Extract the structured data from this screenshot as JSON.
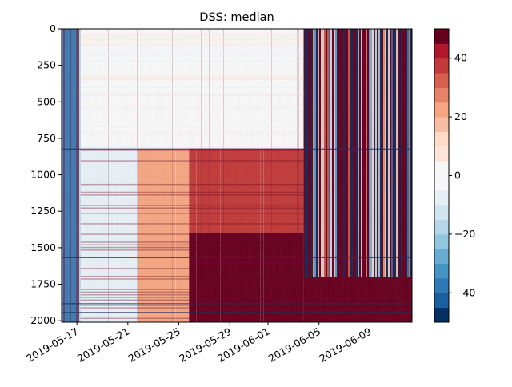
{
  "chart_data": {
    "type": "heatmap",
    "title": "DSS: median",
    "xlabel": "",
    "ylabel": "",
    "x_ticks": [
      "2019-05-17",
      "2019-05-21",
      "2019-05-25",
      "2019-05-29",
      "2019-06-01",
      "2019-06-05",
      "2019-06-09"
    ],
    "x_tick_offsets_days": [
      0.2,
      4.2,
      8.2,
      12.2,
      15.2,
      19.2,
      23.2
    ],
    "xlim_days": [
      -1.0,
      26.5
    ],
    "xlim": [
      "2019-05-15",
      "2019-06-12"
    ],
    "y_ticks": [
      "0",
      "250",
      "500",
      "750",
      "1000",
      "1250",
      "1500",
      "1750",
      "2000"
    ],
    "y_tick_values": [
      0,
      250,
      500,
      750,
      1000,
      1250,
      1500,
      1750,
      2000
    ],
    "ylim": [
      2010,
      0
    ],
    "y_inverted": true,
    "colorbar": {
      "ticks": [
        "40",
        "20",
        "0",
        "−20",
        "−40"
      ],
      "tick_values": [
        40,
        20,
        0,
        -20,
        -40
      ],
      "vmin": -50,
      "vmax": 50,
      "levels": 20,
      "colormap": "RdBu_r",
      "colors": [
        "#053061",
        "#1d5ea0",
        "#2f79b5",
        "#4393c3",
        "#6aabd2",
        "#92c5de",
        "#b5d6e8",
        "#d1e5f0",
        "#e6eff5",
        "#f7f7f7",
        "#f7f7f7",
        "#fbe5d8",
        "#fddbc7",
        "#f7bea3",
        "#f4a582",
        "#e58267",
        "#d6604d",
        "#c03b3a",
        "#b2182b",
        "#67001f"
      ]
    },
    "regions": [
      {
        "days": [
          -1.0,
          0.5
        ],
        "depth": [
          0,
          2010
        ],
        "value": -30,
        "label": "early-columns"
      },
      {
        "days": [
          0.5,
          18.0
        ],
        "depth": [
          0,
          820
        ],
        "value": 3,
        "label": "upper-mixed"
      },
      {
        "days": [
          0.5,
          5.0
        ],
        "depth": [
          820,
          2010
        ],
        "value": -8,
        "label": "early-lower"
      },
      {
        "days": [
          5.0,
          9.0
        ],
        "depth": [
          820,
          2010
        ],
        "value": 22,
        "label": "mid-lower"
      },
      {
        "days": [
          9.0,
          18.0
        ],
        "depth": [
          820,
          1400
        ],
        "value": 38,
        "label": "lower-band"
      },
      {
        "days": [
          9.0,
          18.0
        ],
        "depth": [
          1400,
          2010
        ],
        "value": 48,
        "label": "deep-lower"
      },
      {
        "days": [
          18.0,
          26.5
        ],
        "depth": [
          0,
          2010
        ],
        "value": 45,
        "label": "late-striped"
      }
    ],
    "grid": false
  }
}
